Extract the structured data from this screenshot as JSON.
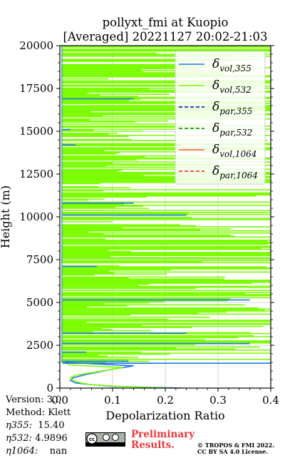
{
  "header": {
    "title_line1": "pollyxt_fmi at Kuopio",
    "title_line2": "[Averaged] 20221127 20:02-21:03"
  },
  "chart_data": {
    "type": "line",
    "xlabel": "Depolarization Ratio",
    "ylabel": "Height (m)",
    "xlim": [
      0,
      0.4
    ],
    "ylim": [
      0,
      20000
    ],
    "xticks": [
      "0.0",
      "0.1",
      "0.2",
      "0.3",
      "0.4"
    ],
    "yticks": [
      "0",
      "2500",
      "5000",
      "7500",
      "10000",
      "12500",
      "15000",
      "17500",
      "20000"
    ],
    "grid": true,
    "legend_position": "top-right",
    "legend": [
      {
        "label": "δvol,355",
        "main": "δ",
        "sub": "vol,355",
        "color": "#1f77e8",
        "style": "solid"
      },
      {
        "label": "δvol,532",
        "main": "δ",
        "sub": "vol,532",
        "color": "#7cfc00",
        "style": "solid"
      },
      {
        "label": "δpar,355",
        "main": "δ",
        "sub": "par,355",
        "color": "#0000cd",
        "style": "dashed"
      },
      {
        "label": "δpar,532",
        "main": "δ",
        "sub": "par,532",
        "color": "#008000",
        "style": "dashed"
      },
      {
        "label": "δvol,1064",
        "main": "δ",
        "sub": "vol,1064",
        "color": "#ff5533",
        "style": "solid"
      },
      {
        "label": "δpar,1064",
        "main": "δ",
        "sub": "par,1064",
        "color": "#e31a1c",
        "style": "dashed"
      }
    ],
    "series": [
      {
        "name": "δvol,355",
        "color": "#1f77e8",
        "profile": [
          [
            0.23,
            0
          ],
          [
            0.1,
            100
          ],
          [
            0.06,
            200
          ],
          [
            0.03,
            300
          ],
          [
            0.02,
            450
          ],
          [
            0.025,
            600
          ],
          [
            0.05,
            800
          ],
          [
            0.1,
            1100
          ],
          [
            0.14,
            1300
          ],
          [
            0.01,
            1500
          ]
        ],
        "spikes": [
          [
            1450,
            0.4
          ],
          [
            1560,
            0.13
          ],
          [
            2100,
            0.05
          ],
          [
            2600,
            0.36
          ],
          [
            3200,
            0.24
          ],
          [
            5150,
            0.36
          ],
          [
            7100,
            0.07
          ],
          [
            10100,
            0.24
          ],
          [
            10800,
            0.14
          ],
          [
            16900,
            0.14
          ],
          [
            15100,
            0.02
          ],
          [
            14200,
            0.03
          ]
        ]
      },
      {
        "name": "δvol,532",
        "color": "#7cfc00",
        "profile": [
          [
            0.21,
            0
          ],
          [
            0.15,
            50
          ],
          [
            0.1,
            120
          ],
          [
            0.06,
            200
          ],
          [
            0.04,
            300
          ],
          [
            0.025,
            450
          ],
          [
            0.02,
            600
          ],
          [
            0.03,
            750
          ],
          [
            0.06,
            900
          ],
          [
            0.09,
            1050
          ],
          [
            0.12,
            1200
          ],
          [
            0.015,
            1350
          ]
        ]
      }
    ]
  },
  "footer": {
    "version": "Version: 3.0",
    "method": "Method: Klett",
    "eta355_label": "η355:",
    "eta355_value": "15.40",
    "eta532_label": "η532:",
    "eta532_value": "4.9896",
    "eta1064_label": "η1064:",
    "eta1064_value": "nan",
    "preliminary_line1": "Preliminary",
    "preliminary_line2": "Results.",
    "copyright_line1": "© TROPOS & FMI 2022.",
    "copyright_line2": "CC BY SA 4.0 License.",
    "cc_badge_text": "cc"
  }
}
